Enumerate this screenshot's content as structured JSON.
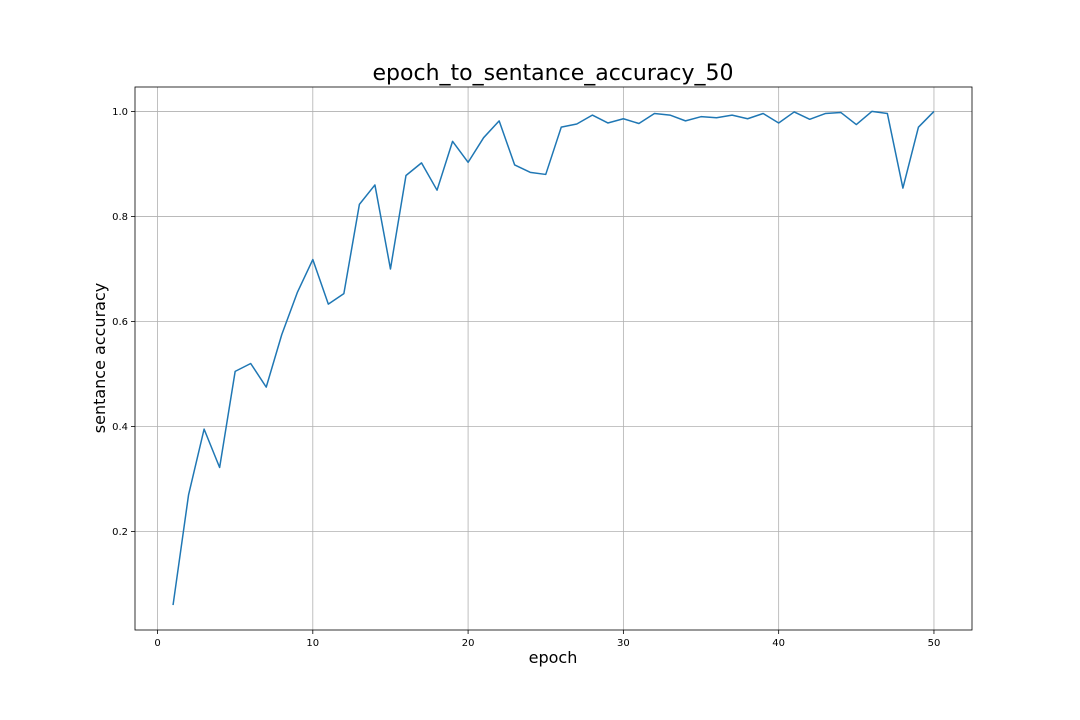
{
  "chart_data": {
    "type": "line",
    "title": "epoch_to_sentance_accuracy_50",
    "xlabel": "epoch",
    "ylabel": "sentance accuracy",
    "xlim": [
      -1.45,
      52.45
    ],
    "ylim": [
      0.0125,
      1.0465
    ],
    "xticks": [
      0,
      10,
      20,
      30,
      40,
      50
    ],
    "yticks": [
      0.2,
      0.4,
      0.6,
      0.8,
      1.0
    ],
    "xtick_labels": [
      "0",
      "10",
      "20",
      "30",
      "40",
      "50"
    ],
    "ytick_labels": [
      "0.2",
      "0.4",
      "0.6",
      "0.8",
      "1.0"
    ],
    "grid": true,
    "series": [
      {
        "color": "#1f77b4",
        "x": [
          1,
          2,
          3,
          4,
          5,
          6,
          7,
          8,
          9,
          10,
          11,
          12,
          13,
          14,
          15,
          16,
          17,
          18,
          19,
          20,
          21,
          22,
          23,
          24,
          25,
          26,
          27,
          28,
          29,
          30,
          31,
          32,
          33,
          34,
          35,
          36,
          37,
          38,
          39,
          40,
          41,
          42,
          43,
          44,
          45,
          46,
          47,
          48,
          49,
          50
        ],
        "y": [
          0.06,
          0.27,
          0.395,
          0.322,
          0.505,
          0.52,
          0.475,
          0.575,
          0.655,
          0.718,
          0.633,
          0.653,
          0.823,
          0.86,
          0.7,
          0.878,
          0.902,
          0.85,
          0.943,
          0.903,
          0.95,
          0.982,
          0.898,
          0.884,
          0.88,
          0.97,
          0.976,
          0.993,
          0.978,
          0.986,
          0.977,
          0.996,
          0.993,
          0.982,
          0.99,
          0.988,
          0.993,
          0.986,
          0.996,
          0.978,
          0.999,
          0.985,
          0.996,
          0.998,
          0.975,
          1.0,
          0.996,
          0.854,
          0.97,
          1.0
        ]
      }
    ]
  }
}
